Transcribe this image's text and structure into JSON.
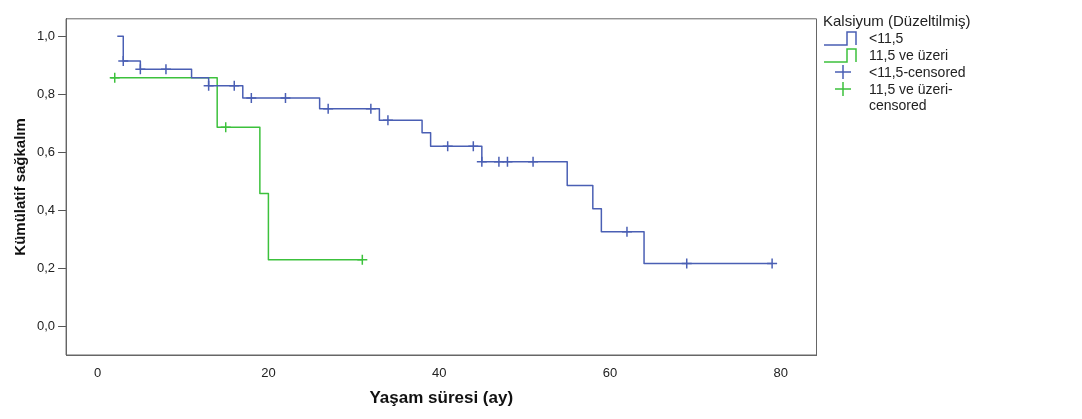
{
  "chart_data": {
    "type": "step",
    "xlabel": "Yaşam süresi (ay)",
    "ylabel": "Kümülatif sağkalım",
    "legend_title": "Kalsiyum (Düzeltilmiş)",
    "legend": "right",
    "grid": false,
    "xlim": [
      -3.7,
      84.2
    ],
    "xticks": [
      0,
      20,
      40,
      60,
      80
    ],
    "ylim": [
      -0.1,
      1.06
    ],
    "yticks": [
      {
        "value": 0,
        "label": "0,0"
      },
      {
        "value": 0.2,
        "label": "0,2"
      },
      {
        "value": 0.4,
        "label": "0,4"
      },
      {
        "value": 0.6,
        "label": "0,6"
      },
      {
        "value": 0.8,
        "label": "0,8"
      },
      {
        "value": 1,
        "label": "1,0"
      }
    ],
    "series": [
      {
        "name": "<11,5",
        "marker": "none",
        "color": "#4a5fb4",
        "x": [
          2.3,
          3,
          5,
          11,
          13,
          17,
          26,
          33,
          38,
          39,
          45,
          55,
          58,
          59,
          64,
          79
        ],
        "values": [
          1.0,
          0.914,
          0.886,
          0.857,
          0.829,
          0.787,
          0.75,
          0.71,
          0.667,
          0.62,
          0.567,
          0.485,
          0.405,
          0.325,
          0.216,
          0.216
        ]
      },
      {
        "name": "11,5 ve üzeri",
        "marker": "none",
        "color": "#3cc13c",
        "x": [
          1.5,
          14,
          19,
          20,
          31
        ],
        "values": [
          0.857,
          0.686,
          0.457,
          0.229,
          0.229
        ]
      },
      {
        "name": "<11,5-censored",
        "type": "scatter",
        "marker": "cross",
        "color": "#4a5fb4",
        "x": [
          3,
          5,
          8,
          13,
          16,
          18,
          22,
          27,
          32,
          34,
          41,
          44,
          45,
          47,
          48,
          51,
          62,
          69,
          79
        ],
        "values": [
          0.914,
          0.886,
          0.886,
          0.829,
          0.829,
          0.787,
          0.787,
          0.75,
          0.75,
          0.71,
          0.62,
          0.62,
          0.567,
          0.567,
          0.567,
          0.567,
          0.325,
          0.216,
          0.216
        ]
      },
      {
        "name": "11,5 ve üzeri-censored",
        "type": "scatter",
        "marker": "cross",
        "color": "#3cc13c",
        "x": [
          2,
          15,
          31
        ],
        "values": [
          0.857,
          0.686,
          0.229
        ]
      }
    ]
  }
}
